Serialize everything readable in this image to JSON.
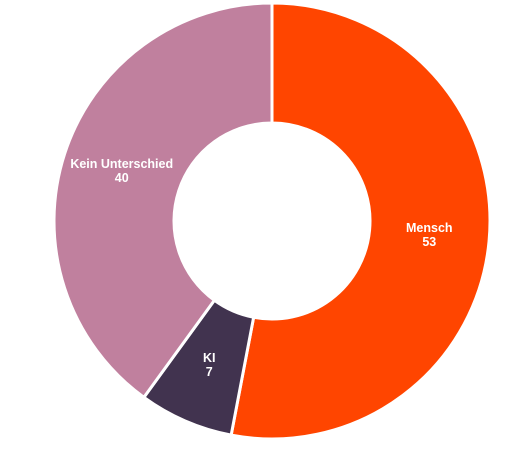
{
  "chart_data": {
    "type": "pie",
    "variant": "donut",
    "start": "top",
    "direction": "clockwise",
    "legend": "none",
    "slices": [
      {
        "label": "Mensch",
        "value": 53,
        "value_label": "53",
        "color": "#FF4500"
      },
      {
        "label": "KI",
        "value": 7,
        "value_label": "7",
        "color": "#41334F"
      },
      {
        "label": "Kein Unterschied",
        "value": 40,
        "value_label": "40",
        "color": "#C0809E"
      }
    ]
  }
}
